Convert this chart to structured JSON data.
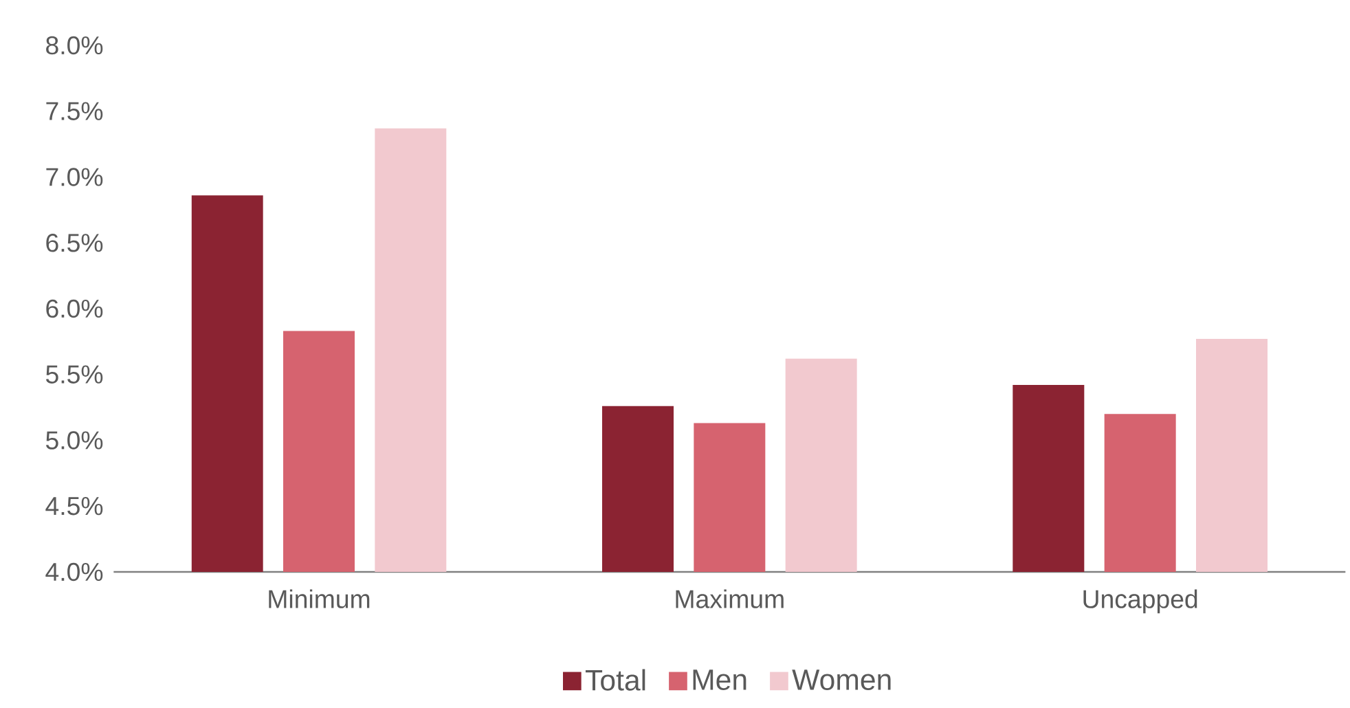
{
  "chart_data": {
    "type": "bar",
    "categories": [
      "Minimum",
      "Maximum",
      "Uncapped"
    ],
    "series": [
      {
        "name": "Total",
        "color": "#8b2332",
        "values": [
          6.86,
          5.26,
          5.42
        ]
      },
      {
        "name": "Men",
        "color": "#d6636f",
        "values": [
          5.83,
          5.13,
          5.2
        ]
      },
      {
        "name": "Women",
        "color": "#f2c9cf",
        "values": [
          7.37,
          5.62,
          5.77
        ]
      }
    ],
    "ylim": [
      4,
      8
    ],
    "yticks": [
      {
        "value": 4,
        "label": "4.0%"
      },
      {
        "value": 4.5,
        "label": "4.5%"
      },
      {
        "value": 5,
        "label": "5.0%"
      },
      {
        "value": 5.5,
        "label": "5.5%"
      },
      {
        "value": 6,
        "label": "6.0%"
      },
      {
        "value": 6.5,
        "label": "6.5%"
      },
      {
        "value": 7,
        "label": "7.0%"
      },
      {
        "value": 7.5,
        "label": "7.5%"
      },
      {
        "value": 8,
        "label": "8.0%"
      }
    ],
    "grid": false,
    "legend": "bottom"
  }
}
